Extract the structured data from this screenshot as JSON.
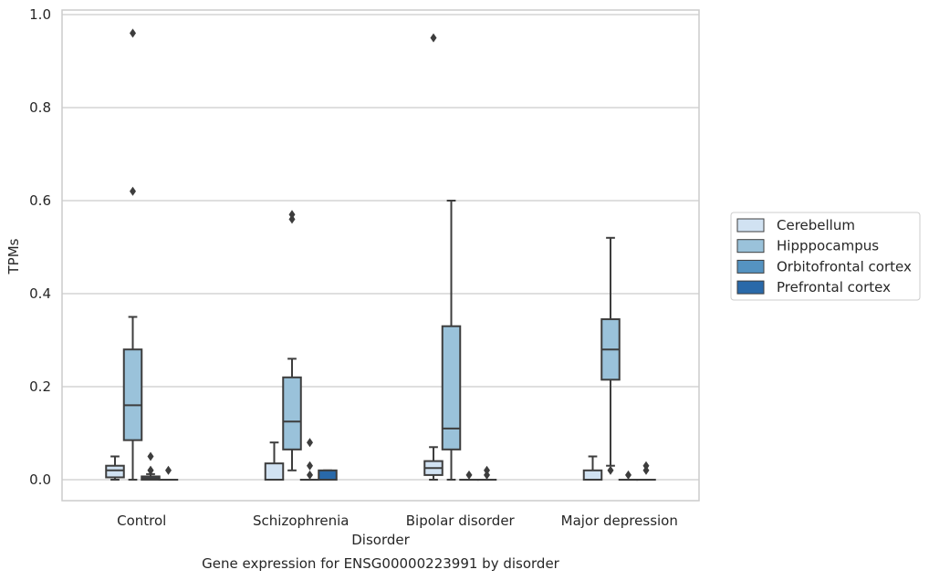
{
  "chart_data": {
    "type": "box",
    "title": "Gene expression for ENSG00000223991 by disorder",
    "xlabel": "Disorder",
    "ylabel": "TPMs",
    "ylim": [
      -0.045,
      1.01
    ],
    "yticks": [
      "0.0",
      "0.2",
      "0.4",
      "0.6",
      "0.8",
      "1.0"
    ],
    "ytick_values": [
      0.0,
      0.2,
      0.4,
      0.6,
      0.8,
      1.0
    ],
    "grid": "horizontal",
    "legend_position": "right",
    "categories": [
      "Control",
      "Schizophrenia",
      "Bipolar disorder",
      "Major depression"
    ],
    "series": [
      {
        "name": "Cerebellum",
        "color": "#d1e2f2",
        "boxes": [
          {
            "min": 0.0,
            "q1": 0.005,
            "median": 0.02,
            "q3": 0.03,
            "max": 0.05,
            "outliers": []
          },
          {
            "min": 0.0,
            "q1": 0.0,
            "median": 0.0,
            "q3": 0.035,
            "max": 0.08,
            "outliers": []
          },
          {
            "min": 0.0,
            "q1": 0.01,
            "median": 0.025,
            "q3": 0.04,
            "max": 0.07,
            "outliers": [
              0.95
            ]
          },
          {
            "min": 0.0,
            "q1": 0.0,
            "median": 0.0,
            "q3": 0.02,
            "max": 0.05,
            "outliers": []
          }
        ]
      },
      {
        "name": "Hipppocampus",
        "color": "#9ac2da",
        "boxes": [
          {
            "min": 0.0,
            "q1": 0.085,
            "median": 0.16,
            "q3": 0.28,
            "max": 0.35,
            "outliers": [
              0.62,
              0.96
            ]
          },
          {
            "min": 0.02,
            "q1": 0.065,
            "median": 0.125,
            "q3": 0.22,
            "max": 0.26,
            "outliers": [
              0.56,
              0.57
            ]
          },
          {
            "min": 0.0,
            "q1": 0.065,
            "median": 0.11,
            "q3": 0.33,
            "max": 0.6,
            "outliers": []
          },
          {
            "min": 0.03,
            "q1": 0.215,
            "median": 0.28,
            "q3": 0.345,
            "max": 0.52,
            "outliers": [
              0.02
            ]
          }
        ]
      },
      {
        "name": "Orbitofrontal cortex",
        "color": "#5593c1",
        "boxes": [
          {
            "min": 0.0,
            "q1": 0.0,
            "median": 0.003,
            "q3": 0.007,
            "max": 0.012,
            "outliers": [
              0.02,
              0.02,
              0.05
            ]
          },
          {
            "min": 0.0,
            "q1": 0.0,
            "median": 0.0,
            "q3": 0.0,
            "max": 0.0,
            "outliers": [
              0.01,
              0.03,
              0.08
            ]
          },
          {
            "min": 0.0,
            "q1": 0.0,
            "median": 0.0,
            "q3": 0.0,
            "max": 0.0,
            "outliers": [
              0.01
            ]
          },
          {
            "min": 0.0,
            "q1": 0.0,
            "median": 0.0,
            "q3": 0.0,
            "max": 0.0,
            "outliers": [
              0.01
            ]
          }
        ]
      },
      {
        "name": "Prefrontal cortex",
        "color": "#2969a9",
        "boxes": [
          {
            "min": 0.0,
            "q1": 0.0,
            "median": 0.0,
            "q3": 0.0,
            "max": 0.0,
            "outliers": [
              0.02
            ]
          },
          {
            "min": 0.0,
            "q1": 0.0,
            "median": 0.0,
            "q3": 0.02,
            "max": 0.02,
            "outliers": []
          },
          {
            "min": 0.0,
            "q1": 0.0,
            "median": 0.0,
            "q3": 0.0,
            "max": 0.0,
            "outliers": [
              0.01,
              0.02
            ]
          },
          {
            "min": 0.0,
            "q1": 0.0,
            "median": 0.0,
            "q3": 0.0,
            "max": 0.0,
            "outliers": [
              0.02,
              0.03
            ]
          }
        ]
      }
    ]
  }
}
